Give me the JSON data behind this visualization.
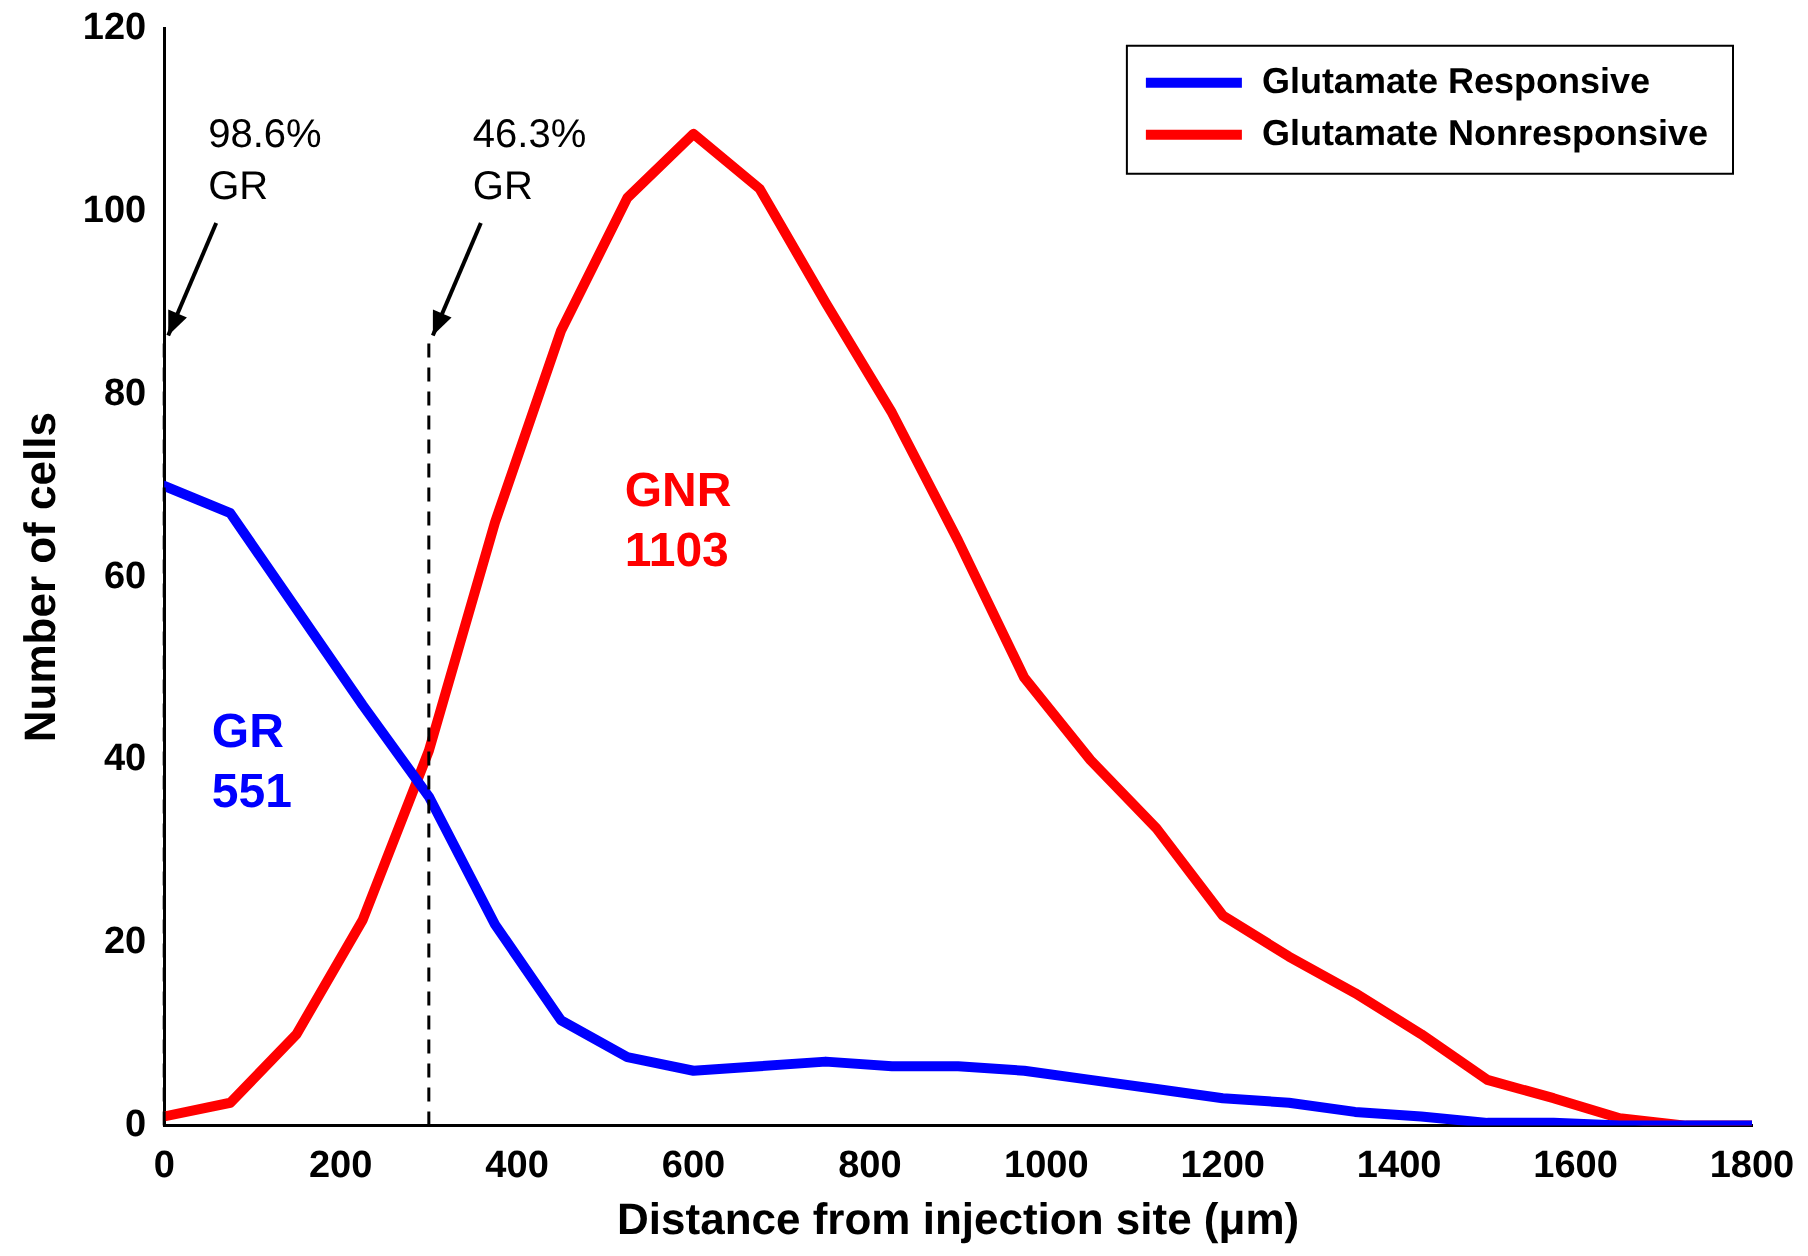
{
  "chart_data": {
    "type": "line",
    "xlabel": "Distance from injection site (μm)",
    "ylabel": "Number of cells",
    "x": [
      0,
      75,
      150,
      225,
      300,
      375,
      450,
      525,
      600,
      675,
      750,
      825,
      900,
      975,
      1050,
      1125,
      1200,
      1275,
      1350,
      1425,
      1500,
      1575,
      1650,
      1725,
      1800
    ],
    "series": [
      {
        "name": "Glutamate Responsive",
        "color": "#0000ff",
        "values": [
          70,
          67,
          56.5,
          46,
          36,
          22,
          11.5,
          7.5,
          6,
          6.5,
          7,
          6.5,
          6.5,
          6,
          5,
          4,
          3,
          2.5,
          1.5,
          1,
          0.3,
          0.3,
          0,
          0,
          0
        ]
      },
      {
        "name": "Glutamate Nonresponsive",
        "color": "#ff0000",
        "values": [
          1,
          2.5,
          10,
          22.5,
          41,
          66,
          87,
          101.5,
          108.5,
          102.5,
          90,
          78,
          64,
          49,
          40,
          32.5,
          23,
          18.5,
          14.5,
          10,
          5,
          3,
          0.8,
          0,
          0
        ]
      }
    ],
    "xlim": [
      0,
      1800
    ],
    "xticks": [
      0,
      200,
      400,
      600,
      800,
      1000,
      1200,
      1400,
      1600,
      1800
    ],
    "ylim": [
      0,
      120
    ],
    "yticks": [
      0,
      20,
      40,
      60,
      80,
      100,
      120
    ],
    "ref_lines": [
      {
        "axis": "x",
        "value": 0,
        "label": "98.6%\nGR",
        "line_style": "dashed"
      },
      {
        "axis": "x",
        "value": 300,
        "label": "46.3%\nGR",
        "line_style": "dashed"
      }
    ],
    "annotations": [
      "GR\n551",
      "GNR\n1103"
    ],
    "legend": "top right",
    "grid": false,
    "marker": "none",
    "line_style": "solid"
  }
}
